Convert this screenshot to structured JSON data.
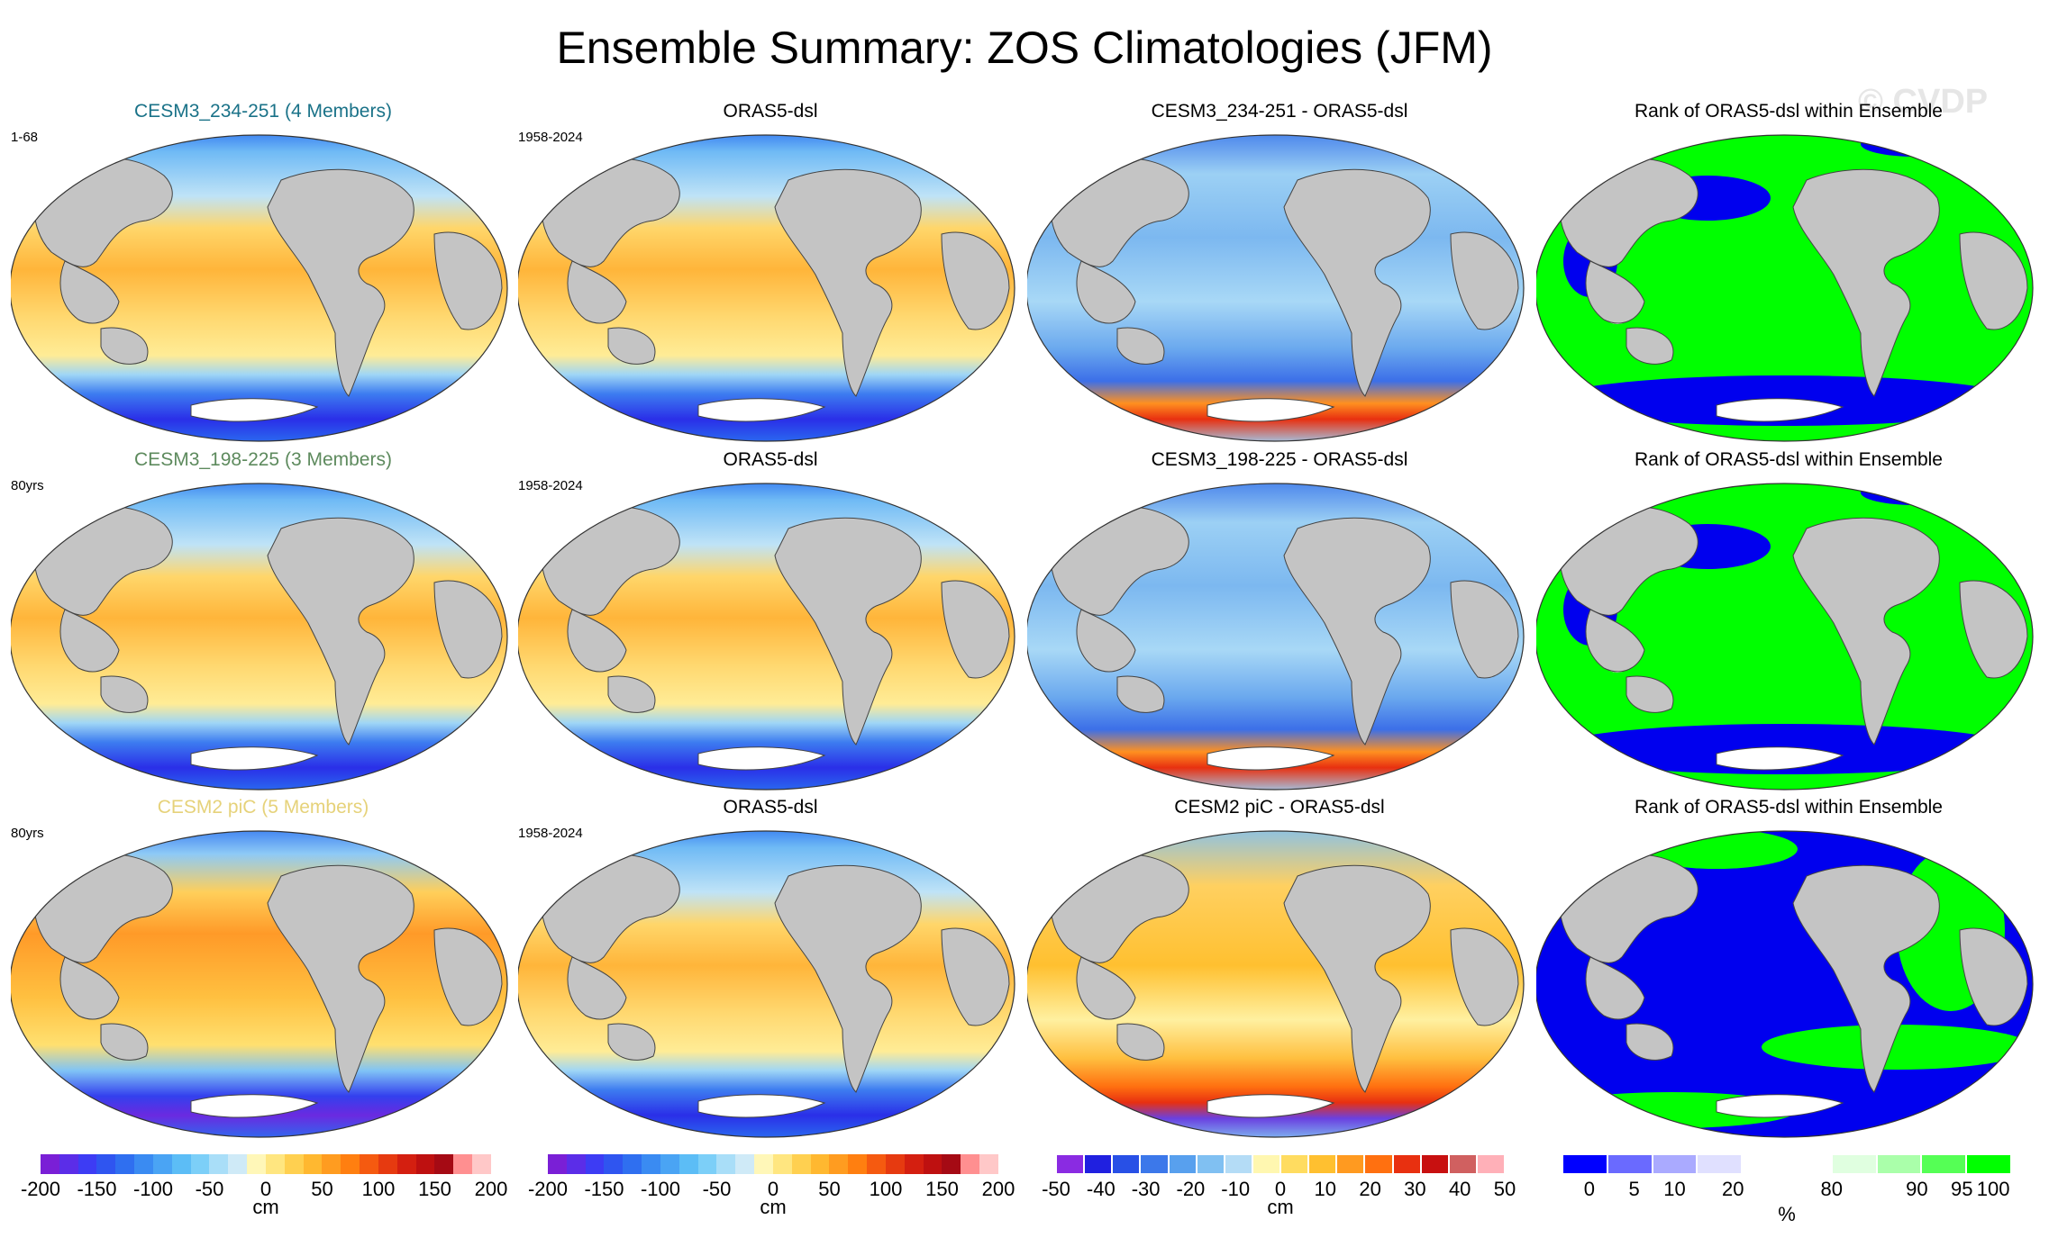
{
  "title": "Ensemble Summary: ZOS Climatologies (JFM)",
  "watermark": "© CVDP",
  "panels": [
    {
      "title": "CESM3_234-251 (4 Members)",
      "label": "1-68",
      "title_color": "#1a7288",
      "kind": "model"
    },
    {
      "title": "ORAS5-dsl",
      "label": "1958-2024",
      "title_color": "#000000",
      "kind": "obs"
    },
    {
      "title": "CESM3_234-251 - ORAS5-dsl",
      "label": "",
      "title_color": "#000000",
      "kind": "diff1"
    },
    {
      "title": "Rank of ORAS5-dsl within Ensemble",
      "label": "",
      "title_color": "#000000",
      "kind": "rank1"
    },
    {
      "title": "CESM3_198-225 (3 Members)",
      "label": "80yrs",
      "title_color": "#5d8a5d",
      "kind": "model"
    },
    {
      "title": "ORAS5-dsl",
      "label": "1958-2024",
      "title_color": "#000000",
      "kind": "obs"
    },
    {
      "title": "CESM3_198-225 - ORAS5-dsl",
      "label": "",
      "title_color": "#000000",
      "kind": "diff1"
    },
    {
      "title": "Rank of ORAS5-dsl within Ensemble",
      "label": "",
      "title_color": "#000000",
      "kind": "rank2"
    },
    {
      "title": "CESM2 piC (5 Members)",
      "label": "80yrs",
      "title_color": "#e6d27a",
      "kind": "model2"
    },
    {
      "title": "ORAS5-dsl",
      "label": "1958-2024",
      "title_color": "#000000",
      "kind": "obs"
    },
    {
      "title": "CESM2 piC - ORAS5-dsl",
      "label": "",
      "title_color": "#000000",
      "kind": "diff2"
    },
    {
      "title": "Rank of ORAS5-dsl within Ensemble",
      "label": "",
      "title_color": "#000000",
      "kind": "rank3"
    }
  ],
  "colorbars": [
    {
      "ticks": [
        "-200",
        "-150",
        "-100",
        "-50",
        "0",
        "50",
        "100",
        "150",
        "200"
      ],
      "unit": "cm",
      "colors": [
        "#7a1fd6",
        "#5b2de8",
        "#3d3cf4",
        "#2f55f0",
        "#2f6ff0",
        "#3a8bf2",
        "#4aa4f4",
        "#5cbdf6",
        "#7ccff8",
        "#a9def8",
        "#cfeaf7",
        "#fff7b8",
        "#ffe680",
        "#ffd050",
        "#ffb830",
        "#ff9c20",
        "#ff7f10",
        "#f55a10",
        "#e63a10",
        "#d41f10",
        "#be1010",
        "#a50a14",
        "#ff8f90",
        "#ffc8c8"
      ]
    },
    {
      "ticks": [
        "-200",
        "-150",
        "-100",
        "-50",
        "0",
        "50",
        "100",
        "150",
        "200"
      ],
      "unit": "cm",
      "colors": [
        "#7a1fd6",
        "#5b2de8",
        "#3d3cf4",
        "#2f55f0",
        "#2f6ff0",
        "#3a8bf2",
        "#4aa4f4",
        "#5cbdf6",
        "#7ccff8",
        "#a9def8",
        "#cfeaf7",
        "#fff7b8",
        "#ffe680",
        "#ffd050",
        "#ffb830",
        "#ff9c20",
        "#ff7f10",
        "#f55a10",
        "#e63a10",
        "#d41f10",
        "#be1010",
        "#a50a14",
        "#ff8f90",
        "#ffc8c8"
      ]
    },
    {
      "ticks": [
        "-50",
        "-40",
        "-30",
        "-20",
        "-10",
        "0",
        "10",
        "20",
        "30",
        "40",
        "50"
      ],
      "unit": "cm",
      "colors": [
        "#8a2be2",
        "#2020e0",
        "#2850e6",
        "#3c78ea",
        "#58a0ee",
        "#80c0f2",
        "#b4dcf6",
        "#fff7b0",
        "#ffdc60",
        "#ffc030",
        "#ff9a20",
        "#ff7010",
        "#e83010",
        "#c81010",
        "#d06060",
        "#ffb0b8"
      ]
    },
    {
      "ticks": [
        "0",
        "5",
        "10",
        "20",
        "80",
        "90",
        "95",
        "100"
      ],
      "unit": "%",
      "colors": [
        "#0000ff",
        "#6a6aff",
        "#aaaaff",
        "#e0e0ff",
        "#ffffff",
        "#ffffff",
        "#e0ffe0",
        "#aaffaa",
        "#55ff55",
        "#00ff00"
      ]
    }
  ]
}
